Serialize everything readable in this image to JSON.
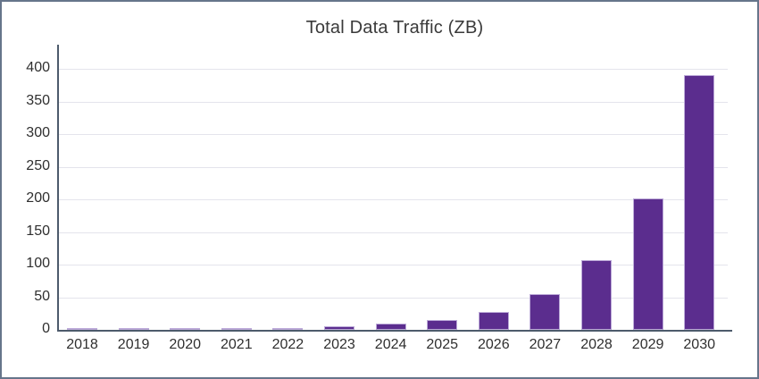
{
  "window": {
    "background": "#ffffff",
    "frame_border_color": "#66758b"
  },
  "chart_data": {
    "type": "bar",
    "title": "Total Data Traffic (ZB)",
    "xlabel": "",
    "ylabel": "",
    "categories": [
      "2018",
      "2019",
      "2020",
      "2021",
      "2022",
      "2023",
      "2024",
      "2025",
      "2026",
      "2027",
      "2028",
      "2029",
      "2030"
    ],
    "values": [
      2.5,
      2.5,
      2.5,
      2.5,
      3,
      6,
      9,
      15,
      28,
      55,
      107,
      201,
      390
    ],
    "ylim": [
      0,
      400
    ],
    "y_ticks": [
      0,
      50,
      100,
      150,
      200,
      250,
      300,
      350,
      400
    ],
    "grid": true,
    "legend_position": "none",
    "bar_color": "#5b2d8e",
    "bar_border_color": "#bcaad8",
    "axis_line_color": "#4d5b6c",
    "gridline_color": "#e4e4ec",
    "tick_label_color": "#2f2f2f",
    "title_color": "#3a3a3a"
  }
}
